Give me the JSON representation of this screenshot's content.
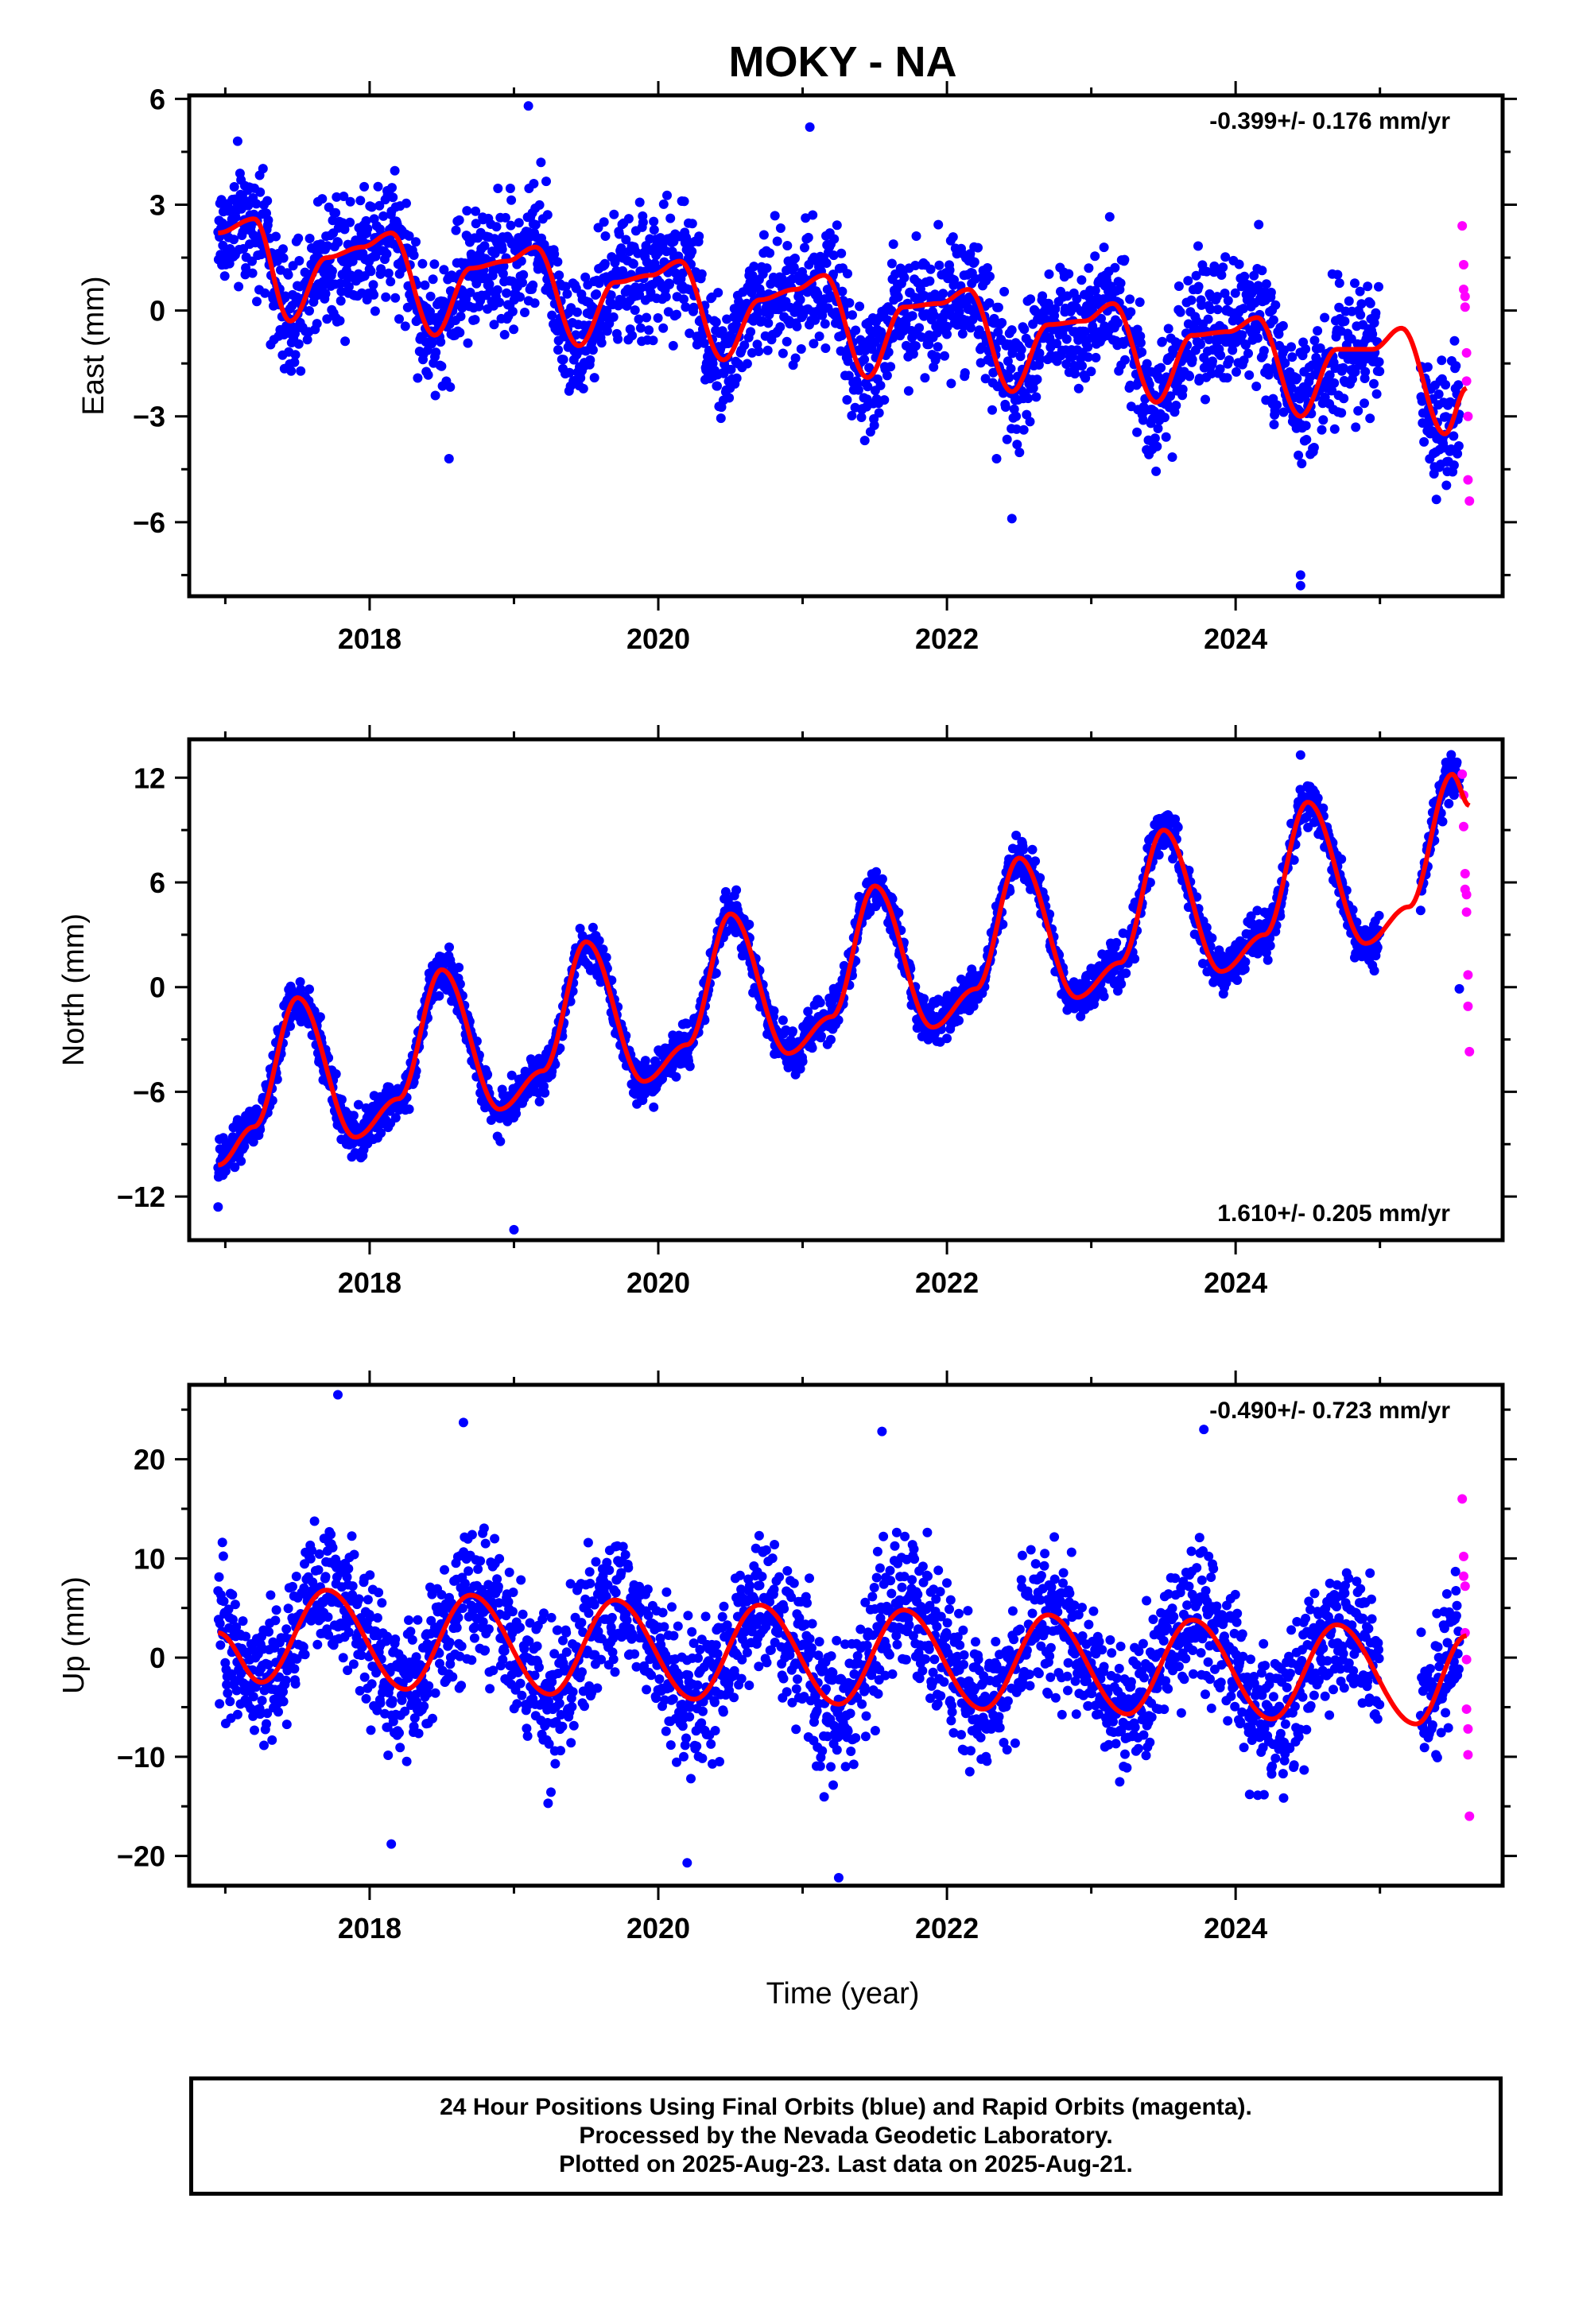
{
  "figure": {
    "title": "MOKY - NA",
    "colors": {
      "final": "#0000ff",
      "rapid": "#ff00ff",
      "model": "#ff0000"
    },
    "xlabel": "Time (year)",
    "caption": [
      "24 Hour Positions Using Final Orbits (blue) and Rapid Orbits (magenta).",
      "Processed by the Nevada Geodetic Laboratory.",
      "Plotted on 2025-Aug-23. Last data on 2025-Aug-21."
    ]
  },
  "chart_data": [
    {
      "type": "scatter",
      "ylabel": "East (mm)",
      "rate_label": "-0.399+/- 0.176 mm/yr",
      "rate_position": "top-right",
      "xlim": [
        2016.75,
        2025.85
      ],
      "ylim": [
        -8.1,
        6.1
      ],
      "x_ticks": [
        2018,
        2020,
        2022,
        2024
      ],
      "y_ticks": [
        -6,
        -3,
        0,
        3,
        6
      ],
      "model_curve": {
        "name": "model",
        "x": [
          2016.95,
          2017.2,
          2017.45,
          2017.7,
          2017.95,
          2018.15,
          2018.45,
          2018.7,
          2018.95,
          2019.15,
          2019.45,
          2019.7,
          2019.95,
          2020.15,
          2020.45,
          2020.7,
          2020.95,
          2021.15,
          2021.45,
          2021.7,
          2021.95,
          2022.15,
          2022.45,
          2022.7,
          2022.95,
          2023.15,
          2023.45,
          2023.7,
          2023.95,
          2024.15,
          2024.45,
          2024.7,
          2024.95,
          2025.15,
          2025.45,
          2025.6
        ],
        "y": [
          2.2,
          2.6,
          -0.3,
          1.5,
          1.8,
          2.2,
          -0.7,
          1.2,
          1.4,
          1.8,
          -1.0,
          0.8,
          1.0,
          1.4,
          -1.4,
          0.3,
          0.6,
          1.0,
          -1.9,
          0.1,
          0.2,
          0.6,
          -2.3,
          -0.4,
          -0.3,
          0.2,
          -2.6,
          -0.7,
          -0.6,
          -0.2,
          -3.0,
          -1.1,
          -1.1,
          -0.5,
          -3.5,
          -2.2
        ]
      },
      "noise_amplitude": 1.3,
      "outliers": [
        {
          "x": 2019.1,
          "y": 5.8
        },
        {
          "x": 2021.05,
          "y": 5.2
        },
        {
          "x": 2024.45,
          "y": -7.8
        },
        {
          "x": 2024.45,
          "y": -7.5
        },
        {
          "x": 2018.55,
          "y": -4.2
        },
        {
          "x": 2022.45,
          "y": -5.9
        }
      ],
      "rapid_points": {
        "x": [
          2025.57,
          2025.58,
          2025.58,
          2025.59,
          2025.59,
          2025.6,
          2025.6,
          2025.61,
          2025.61,
          2025.62
        ],
        "y": [
          2.4,
          1.3,
          0.6,
          0.4,
          0.1,
          -1.2,
          -2.0,
          -3.0,
          -4.8,
          -5.4
        ]
      }
    },
    {
      "type": "scatter",
      "ylabel": "North (mm)",
      "rate_label": "1.610+/- 0.205 mm/yr",
      "rate_position": "bottom-right",
      "xlim": [
        2016.75,
        2025.85
      ],
      "ylim": [
        -14.5,
        14.2
      ],
      "x_ticks": [
        2018,
        2020,
        2022,
        2024
      ],
      "y_ticks": [
        -12,
        -6,
        0,
        6,
        12
      ],
      "model_curve": {
        "name": "model",
        "x": [
          2016.95,
          2017.2,
          2017.5,
          2017.9,
          2018.2,
          2018.5,
          2018.9,
          2019.2,
          2019.5,
          2019.9,
          2020.2,
          2020.5,
          2020.9,
          2021.2,
          2021.5,
          2021.9,
          2022.2,
          2022.5,
          2022.9,
          2023.2,
          2023.5,
          2023.9,
          2024.2,
          2024.5,
          2024.9,
          2025.2,
          2025.5,
          2025.62
        ],
        "y": [
          -10.2,
          -8.0,
          -0.6,
          -8.6,
          -6.4,
          1.0,
          -7.0,
          -4.8,
          2.6,
          -5.4,
          -3.3,
          4.2,
          -3.8,
          -1.7,
          5.8,
          -2.3,
          -0.1,
          7.4,
          -0.6,
          1.4,
          9.0,
          0.9,
          3.0,
          10.6,
          2.5,
          4.6,
          12.2,
          10.4
        ]
      },
      "noise_amplitude": 0.9,
      "outliers": [
        {
          "x": 2019.0,
          "y": -13.9
        },
        {
          "x": 2016.95,
          "y": -12.6
        },
        {
          "x": 2024.45,
          "y": 13.3
        },
        {
          "x": 2025.55,
          "y": -0.1
        }
      ],
      "rapid_points": {
        "x": [
          2025.57,
          2025.58,
          2025.58,
          2025.59,
          2025.59,
          2025.6,
          2025.6,
          2025.61,
          2025.61,
          2025.62
        ],
        "y": [
          12.2,
          11.0,
          9.2,
          6.5,
          5.6,
          5.3,
          4.3,
          0.7,
          -1.1,
          -3.7
        ]
      }
    },
    {
      "type": "scatter",
      "ylabel": "Up (mm)",
      "rate_label": "-0.490+/- 0.723 mm/yr",
      "rate_position": "top-right",
      "xlim": [
        2016.75,
        2025.85
      ],
      "ylim": [
        -23,
        27.5
      ],
      "x_ticks": [
        2018,
        2020,
        2022,
        2024
      ],
      "y_ticks": [
        -20,
        -10,
        0,
        10,
        20
      ],
      "model_curve": {
        "name": "model",
        "x": [
          2016.95,
          2017.25,
          2017.7,
          2018.25,
          2018.7,
          2019.25,
          2019.7,
          2020.25,
          2020.7,
          2021.25,
          2021.7,
          2022.25,
          2022.7,
          2023.25,
          2023.7,
          2024.25,
          2024.7,
          2025.25,
          2025.6
        ],
        "y": [
          2.5,
          -2.5,
          6.8,
          -3.2,
          6.3,
          -3.7,
          5.8,
          -4.2,
          5.3,
          -4.7,
          4.8,
          -5.2,
          4.3,
          -5.7,
          3.8,
          -6.2,
          3.3,
          -6.7,
          2.2
        ]
      },
      "noise_amplitude": 5.0,
      "outliers": [
        {
          "x": 2017.78,
          "y": 26.5
        },
        {
          "x": 2018.65,
          "y": 23.7
        },
        {
          "x": 2021.55,
          "y": 22.8
        },
        {
          "x": 2023.78,
          "y": 23.0
        },
        {
          "x": 2021.25,
          "y": -22.2
        },
        {
          "x": 2020.2,
          "y": -20.7
        },
        {
          "x": 2018.15,
          "y": -18.8
        }
      ],
      "rapid_points": {
        "x": [
          2025.57,
          2025.58,
          2025.58,
          2025.59,
          2025.59,
          2025.6,
          2025.6,
          2025.61,
          2025.61,
          2025.62
        ],
        "y": [
          16.0,
          10.2,
          8.2,
          7.2,
          2.5,
          -0.2,
          -5.2,
          -7.2,
          -9.8,
          -16.0
        ]
      }
    }
  ]
}
